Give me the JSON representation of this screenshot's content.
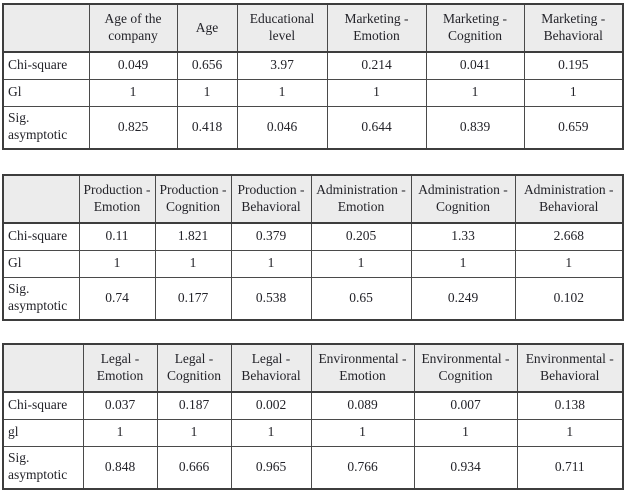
{
  "style": {
    "header_bg": "#ececec",
    "border_color": "#3d3d3d",
    "text_color": "#232329",
    "page_bg": "#ffffff"
  },
  "tables": [
    {
      "title": "demographics-and-marketing",
      "columns": [
        "",
        "Age of the company",
        "Age",
        "Educational level",
        "Marketing - Emotion",
        "Marketing - Cognition",
        "Marketing - Behavioral"
      ],
      "rows": [
        {
          "label": "Chi-square",
          "values": [
            "0.049",
            "0.656",
            "3.97",
            "0.214",
            "0.041",
            "0.195"
          ]
        },
        {
          "label": "Gl",
          "values": [
            "1",
            "1",
            "1",
            "1",
            "1",
            "1"
          ]
        },
        {
          "label": "Sig. asymptotic",
          "values": [
            "0.825",
            "0.418",
            "0.046",
            "0.644",
            "0.839",
            "0.659"
          ]
        }
      ]
    },
    {
      "title": "production-and-administration",
      "columns": [
        "",
        "Production - Emotion",
        "Production - Cognition",
        "Production - Behavioral",
        "Administration - Emotion",
        "Administration - Cognition",
        "Administration - Behavioral"
      ],
      "rows": [
        {
          "label": "Chi-square",
          "values": [
            "0.11",
            "1.821",
            "0.379",
            "0.205",
            "1.33",
            "2.668"
          ]
        },
        {
          "label": "Gl",
          "values": [
            "1",
            "1",
            "1",
            "1",
            "1",
            "1"
          ]
        },
        {
          "label": "Sig. asymptotic",
          "values": [
            "0.74",
            "0.177",
            "0.538",
            "0.65",
            "0.249",
            "0.102"
          ]
        }
      ]
    },
    {
      "title": "legal-and-environmental",
      "columns": [
        "",
        "Legal - Emotion",
        "Legal - Cognition",
        "Legal - Behavioral",
        "Environmental - Emotion",
        "Environmental - Cognition",
        "Environmental - Behavioral"
      ],
      "rows": [
        {
          "label": "Chi-square",
          "values": [
            "0.037",
            "0.187",
            "0.002",
            "0.089",
            "0.007",
            "0.138"
          ]
        },
        {
          "label": "gl",
          "values": [
            "1",
            "1",
            "1",
            "1",
            "1",
            "1"
          ]
        },
        {
          "label": "Sig. asymptotic",
          "values": [
            "0.848",
            "0.666",
            "0.965",
            "0.766",
            "0.934",
            "0.711"
          ]
        }
      ]
    }
  ]
}
